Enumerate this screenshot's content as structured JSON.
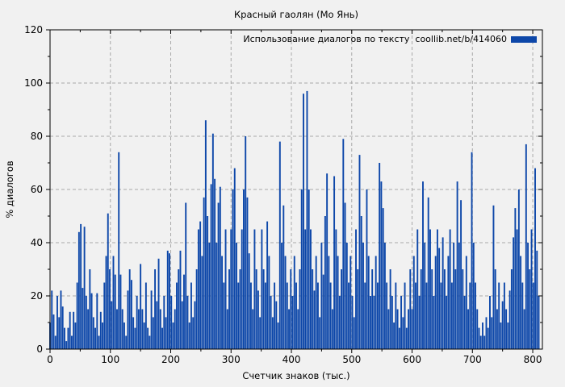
{
  "figure": {
    "background": "#f1f1f1",
    "border_color": "#000000",
    "grid_color": "#a9a9a9",
    "text_color": "#000000"
  },
  "chart_data": {
    "type": "bar",
    "title": "Красный гаолян (Мо Янь)",
    "xlabel": "Счетчик знаков (тыс.)",
    "ylabel": "% диалогов",
    "legend": {
      "label": "Использование диалогов по тексту  coollib.net/b/414060",
      "swatch_color": "#0d47a9",
      "position": "top-right-inside"
    },
    "bar_color": "#0d47a9",
    "grid": true,
    "xlim": [
      0,
      816
    ],
    "ylim": [
      0,
      120
    ],
    "x_ticks": [
      0,
      100,
      200,
      300,
      400,
      500,
      600,
      700,
      800
    ],
    "x_minor_ticks": [
      50,
      150,
      250,
      350,
      450,
      550,
      650,
      750
    ],
    "y_ticks": [
      0,
      20,
      40,
      60,
      80,
      100,
      120
    ],
    "y_minor_ticks": [
      10,
      30,
      50,
      70,
      90,
      110
    ],
    "x_start": 0,
    "x_step": 3,
    "values": [
      10,
      22,
      13,
      5,
      20,
      12,
      22,
      16,
      8,
      3,
      8,
      14,
      5,
      14,
      10,
      25,
      44,
      47,
      23,
      46,
      20,
      15,
      30,
      21,
      12,
      8,
      21,
      5,
      14,
      10,
      25,
      35,
      51,
      30,
      18,
      35,
      28,
      15,
      74,
      28,
      15,
      10,
      5,
      22,
      30,
      26,
      12,
      8,
      20,
      15,
      32,
      15,
      10,
      25,
      8,
      5,
      22,
      12,
      30,
      18,
      34,
      15,
      8,
      20,
      12,
      37,
      36,
      20,
      10,
      15,
      25,
      30,
      37,
      18,
      28,
      55,
      20,
      10,
      25,
      12,
      18,
      30,
      45,
      48,
      35,
      57,
      86,
      50,
      40,
      62,
      81,
      64,
      40,
      55,
      61,
      35,
      25,
      45,
      15,
      30,
      45,
      60,
      68,
      40,
      25,
      30,
      45,
      60,
      80,
      57,
      36,
      25,
      15,
      45,
      30,
      22,
      12,
      45,
      30,
      25,
      48,
      35,
      20,
      12,
      25,
      18,
      10,
      78,
      40,
      54,
      35,
      25,
      15,
      30,
      20,
      35,
      25,
      15,
      30,
      60,
      96,
      45,
      97,
      60,
      45,
      30,
      22,
      35,
      25,
      12,
      40,
      28,
      50,
      66,
      35,
      25,
      15,
      65,
      45,
      35,
      20,
      30,
      79,
      55,
      40,
      25,
      35,
      20,
      12,
      45,
      30,
      73,
      50,
      40,
      25,
      60,
      35,
      20,
      30,
      20,
      35,
      25,
      70,
      63,
      53,
      40,
      25,
      15,
      30,
      20,
      10,
      25,
      15,
      8,
      20,
      12,
      25,
      8,
      15,
      30,
      15,
      35,
      25,
      45,
      20,
      30,
      63,
      40,
      25,
      57,
      45,
      30,
      20,
      35,
      45,
      38,
      25,
      42,
      30,
      20,
      35,
      45,
      25,
      40,
      30,
      63,
      40,
      56,
      30,
      20,
      35,
      15,
      25,
      74,
      40,
      25,
      15,
      8,
      5,
      10,
      5,
      12,
      8,
      20,
      12,
      54,
      30,
      15,
      25,
      10,
      18,
      25,
      15,
      10,
      22,
      30,
      42,
      53,
      45,
      60,
      35,
      25,
      15,
      77,
      40,
      30,
      45,
      25,
      68,
      37,
      20
    ]
  }
}
